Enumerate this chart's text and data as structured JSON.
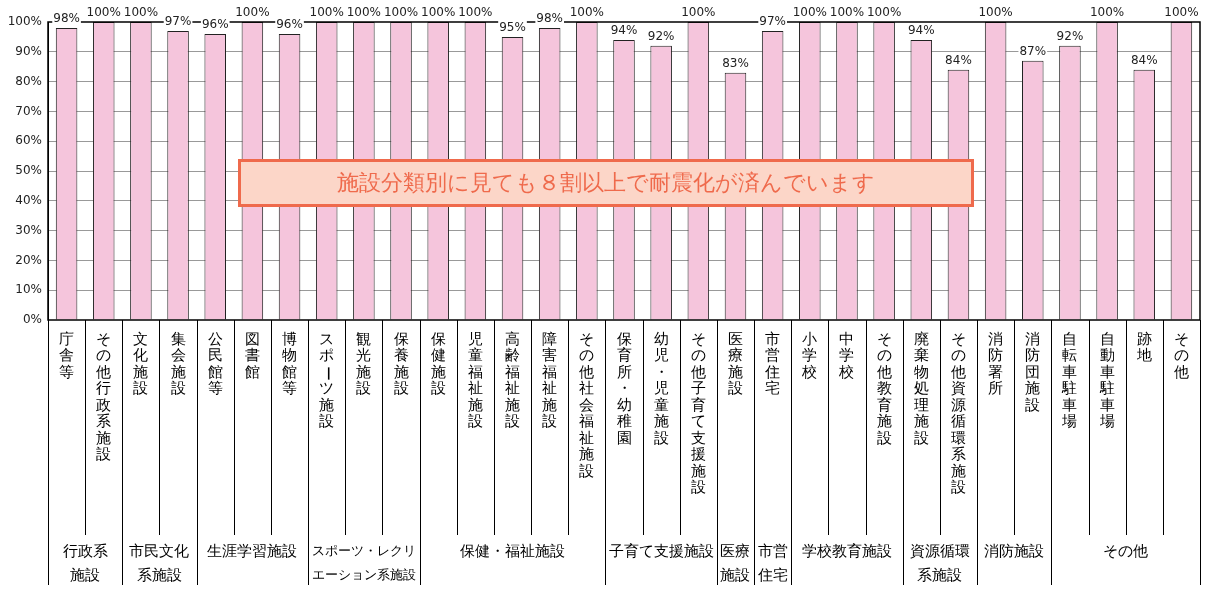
{
  "chart_data": {
    "type": "bar",
    "categories": [
      "庁舎等",
      "その他行政系施設",
      "文化施設",
      "集会施設",
      "公民館等",
      "図書館",
      "博物館等",
      "スポーツ施設",
      "観光施設",
      "保養施設",
      "保健施設",
      "児童福祉施設",
      "高齢福祉施設",
      "障害福祉施設",
      "その他社会福祉施設",
      "保育所・幼稚園",
      "幼児・児童施設",
      "その他子育て支援施設",
      "医療施設",
      "市営住宅",
      "小学校",
      "中学校",
      "その他教育施設",
      "廃棄物処理施設",
      "その他資源循環系施設",
      "消防署所",
      "消防団施設",
      "自転車駐車場",
      "自動車駐車場",
      "跡地",
      "その他"
    ],
    "values": [
      98,
      100,
      100,
      97,
      96,
      100,
      96,
      100,
      100,
      100,
      100,
      100,
      95,
      98,
      100,
      94,
      92,
      100,
      83,
      97,
      100,
      100,
      100,
      94,
      84,
      100,
      87,
      92,
      100,
      84,
      100
    ],
    "value_labels": [
      "98%",
      "100%",
      "100%",
      "97%",
      "96%",
      "100%",
      "96%",
      "100%",
      "100%",
      "100%",
      "100%",
      "100%",
      "95%",
      "98%",
      "100%",
      "94%",
      "92%",
      "100%",
      "83%",
      "97%",
      "100%",
      "100%",
      "100%",
      "94%",
      "84%",
      "100%",
      "87%",
      "92%",
      "100%",
      "84%",
      "100%"
    ],
    "color": "#f5c5dc",
    "ylim": [
      0,
      100
    ],
    "yticks": [
      {
        "value": 0,
        "label": "0%"
      },
      {
        "value": 10,
        "label": "10%"
      },
      {
        "value": 20,
        "label": "20%"
      },
      {
        "value": 30,
        "label": "30%"
      },
      {
        "value": 40,
        "label": "40%"
      },
      {
        "value": 50,
        "label": "50%"
      },
      {
        "value": 60,
        "label": "60%"
      },
      {
        "value": 70,
        "label": "70%"
      },
      {
        "value": 80,
        "label": "80%"
      },
      {
        "value": 90,
        "label": "90%"
      },
      {
        "value": 100,
        "label": "100%"
      }
    ],
    "grid": "y",
    "legend": false,
    "annotations": [
      "施設分類別に見ても８割以上で耐震化が済んでいます",
      "行政系施設",
      "市民文化系施設",
      "生涯学習施設",
      "スポーツ・レクリエーション系施設",
      "保健・福祉施設",
      "子育て支援施設",
      "医療施設",
      "市営住宅",
      "学校教育施設",
      "資源循環系施設",
      "消防施設",
      "その他"
    ]
  }
}
